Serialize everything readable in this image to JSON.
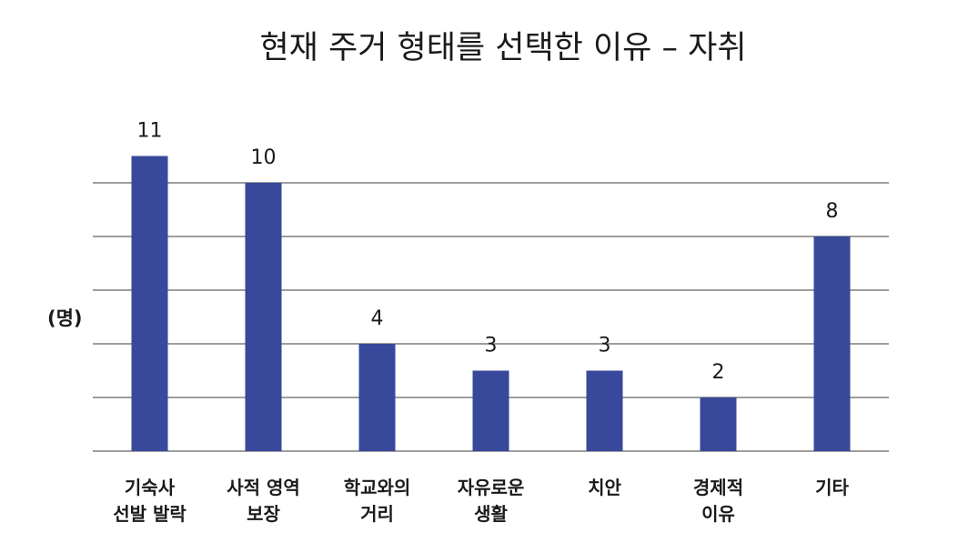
{
  "chart_data": {
    "type": "bar",
    "title": "현재 주거 형태를 선택한 이유 – 자취",
    "ylabel": "(명)",
    "xlabel": "",
    "categories": [
      [
        "기숙사",
        "선발 발락"
      ],
      [
        "사적 영역",
        "보장"
      ],
      [
        "학교와의",
        "거리"
      ],
      [
        "자유로운",
        "생활"
      ],
      [
        "치안"
      ],
      [
        "경제적",
        "이유"
      ],
      [
        "기타"
      ]
    ],
    "values": [
      11,
      10,
      4,
      3,
      3,
      2,
      8
    ],
    "value_labels": [
      "11",
      "10",
      "4",
      "3",
      "3",
      "2",
      "8"
    ],
    "ylim": [
      0,
      10
    ],
    "gridlines": [
      2,
      4,
      6,
      8,
      10
    ],
    "grid": true,
    "show_y_tick_labels": false,
    "legend": "none",
    "bar_color": "#38489b",
    "grid_color": "#7f7f7f"
  }
}
